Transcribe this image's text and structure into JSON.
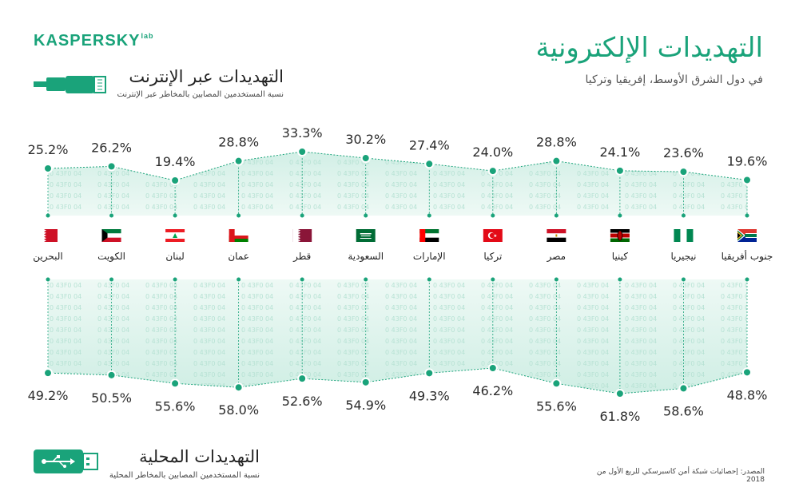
{
  "brand": {
    "name": "KASPERSKY",
    "suffix": "lab"
  },
  "header": {
    "title": "التهديدات الإلكترونية",
    "subtitle": "في دول الشرق الأوسط، إفريقيا وتركيا"
  },
  "internet_section": {
    "title": "التهديدات عبر الإنترنت",
    "subtitle": "نسبة المستخدمين المصابين بالمخاطر عبر الإنترنت",
    "icon": "ethernet-cable-icon"
  },
  "local_section": {
    "title": "التهديدات المحلية",
    "subtitle": "نسبة المستخدمين المصابين بالمخاطر المحلية",
    "icon": "usb-drive-icon"
  },
  "footer": {
    "source": "المصدر: إحصائيات شبكة أمن كاسبرسكي للربع الأول من 2018"
  },
  "colors": {
    "accent": "#1aa37a",
    "band": "#d9f1ea",
    "dark": "#1a6e55"
  },
  "chart_data": {
    "type": "line",
    "categories": [
      "البحرين",
      "الكويت",
      "لبنان",
      "عمان",
      "قطر",
      "السعودية",
      "الإمارات",
      "تركيا",
      "مصر",
      "كينيا",
      "نيجيريا",
      "جنوب أفريقيا"
    ],
    "flags": [
      "bahrain",
      "kuwait",
      "lebanon",
      "oman",
      "qatar",
      "saudi-arabia",
      "uae",
      "turkey",
      "egypt",
      "kenya",
      "nigeria",
      "south-africa"
    ],
    "series": [
      {
        "name": "التهديدات عبر الإنترنت",
        "values": [
          25.2,
          26.2,
          19.4,
          28.8,
          33.3,
          30.2,
          27.4,
          24.0,
          28.8,
          24.1,
          23.6,
          19.6
        ],
        "unit": "%"
      },
      {
        "name": "التهديدات المحلية",
        "values": [
          49.2,
          50.5,
          55.6,
          58.0,
          52.6,
          54.9,
          49.3,
          46.2,
          55.6,
          61.8,
          58.6,
          48.8
        ],
        "unit": "%"
      }
    ]
  }
}
